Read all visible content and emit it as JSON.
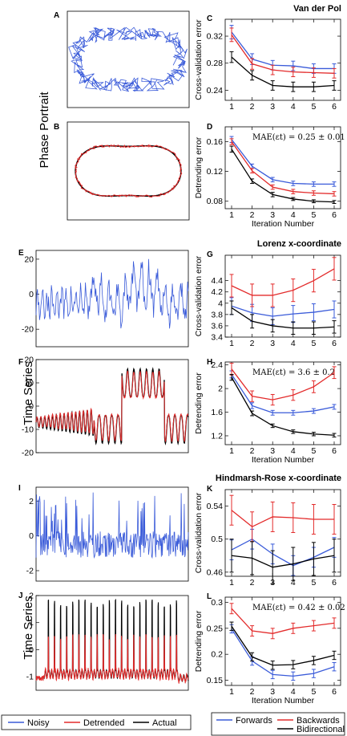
{
  "figure": {
    "row_labels": [
      "Phase Portrait",
      "Time Series",
      "Time Series"
    ],
    "section_titles": [
      "Van der Pol",
      "Lorenz x-coordinate",
      "Hindmarsh-Rose x-coordinate"
    ],
    "left_legend": [
      {
        "label": "Noisy",
        "color": "#3a5bd9"
      },
      {
        "label": "Detrended",
        "color": "#e32b2b"
      },
      {
        "label": "Actual",
        "color": "#000000"
      }
    ],
    "right_legend": [
      {
        "label": "Forwards",
        "color": "#3a5bd9"
      },
      {
        "label": "Backwards",
        "color": "#e32b2b"
      },
      {
        "label": "Bidirectional",
        "color": "#000000"
      }
    ],
    "colors": {
      "forwards": "#3a5bd9",
      "backwards": "#e32b2b",
      "bidirectional": "#000000"
    }
  },
  "chart_data": [
    {
      "panel": "A",
      "type": "line",
      "subtype": "phase-portrait-noisy",
      "series": [
        {
          "role": "noisy",
          "color": "#3a5bd9"
        }
      ]
    },
    {
      "panel": "B",
      "type": "line",
      "subtype": "phase-portrait-detrended",
      "series": [
        {
          "role": "actual",
          "color": "#000000"
        },
        {
          "role": "detrended",
          "color": "#e32b2b"
        }
      ]
    },
    {
      "panel": "C",
      "type": "line",
      "ylabel": "Cross-validation error",
      "x": [
        1,
        2,
        3,
        4,
        5,
        6
      ],
      "xlim": [
        1,
        6
      ],
      "ylim": [
        0.225,
        0.345
      ],
      "yticks": [
        "0.24",
        "0.28",
        "0.32"
      ],
      "ytick_values": [
        0.24,
        0.28,
        0.32
      ],
      "xticks": [
        "1",
        "2",
        "3",
        "4",
        "5",
        "6"
      ],
      "series": [
        {
          "name": "Forwards",
          "values": [
            0.326,
            0.286,
            0.277,
            0.276,
            0.272,
            0.272
          ],
          "err": [
            0.01,
            0.008,
            0.007,
            0.007,
            0.007,
            0.007
          ]
        },
        {
          "name": "Backwards",
          "values": [
            0.322,
            0.279,
            0.27,
            0.267,
            0.266,
            0.265
          ],
          "err": [
            0.01,
            0.008,
            0.007,
            0.007,
            0.007,
            0.007
          ]
        },
        {
          "name": "Bidirectional",
          "values": [
            0.289,
            0.262,
            0.247,
            0.245,
            0.245,
            0.247
          ],
          "err": [
            0.008,
            0.007,
            0.007,
            0.007,
            0.007,
            0.007
          ]
        }
      ]
    },
    {
      "panel": "D",
      "type": "line",
      "ylabel": "Detrending error",
      "xlabel": "Iteration Number",
      "annotation": "MAE(εt) = 0.25 ± 0.01",
      "x": [
        1,
        2,
        3,
        4,
        5,
        6
      ],
      "xlim": [
        1,
        6
      ],
      "ylim": [
        0.07,
        0.18
      ],
      "yticks": [
        "0.08",
        "0.12",
        "0.16"
      ],
      "ytick_values": [
        0.08,
        0.12,
        0.16
      ],
      "xticks": [
        "1",
        "2",
        "3",
        "4",
        "5",
        "6"
      ],
      "series": [
        {
          "name": "Forwards",
          "values": [
            0.163,
            0.127,
            0.109,
            0.104,
            0.103,
            0.103
          ],
          "err": [
            0.004,
            0.003,
            0.003,
            0.003,
            0.003,
            0.003
          ]
        },
        {
          "name": "Backwards",
          "values": [
            0.16,
            0.121,
            0.099,
            0.093,
            0.091,
            0.09
          ],
          "err": [
            0.004,
            0.003,
            0.003,
            0.003,
            0.003,
            0.003
          ]
        },
        {
          "name": "Bidirectional",
          "values": [
            0.15,
            0.107,
            0.089,
            0.083,
            0.08,
            0.079
          ],
          "err": [
            0.004,
            0.003,
            0.003,
            0.002,
            0.002,
            0.002
          ]
        }
      ]
    },
    {
      "panel": "E",
      "type": "line",
      "subtype": "time-series-noisy",
      "ylim": [
        -30,
        25
      ],
      "yticks": [
        "-20",
        "0",
        "20"
      ],
      "ytick_values": [
        -20,
        0,
        20
      ],
      "series": [
        {
          "role": "noisy",
          "color": "#3a5bd9"
        }
      ]
    },
    {
      "panel": "F",
      "type": "line",
      "subtype": "time-series-detrended",
      "ylim": [
        -20,
        20
      ],
      "yticks": [
        "-20",
        "-10",
        "0",
        "10",
        "20"
      ],
      "ytick_values": [
        -20,
        -10,
        0,
        10,
        20
      ],
      "series": [
        {
          "role": "actual",
          "color": "#000000"
        },
        {
          "role": "detrended",
          "color": "#e32b2b"
        }
      ]
    },
    {
      "panel": "G",
      "type": "line",
      "ylabel": "Cross-validation error",
      "x": [
        1,
        2,
        3,
        4,
        5,
        6
      ],
      "xlim": [
        1,
        6
      ],
      "ylim": [
        3.4,
        4.85
      ],
      "yticks": [
        "3.4",
        "3.6",
        "3.8",
        "4",
        "4.2",
        "4.4"
      ],
      "ytick_values": [
        3.4,
        3.6,
        3.8,
        4.0,
        4.2,
        4.4
      ],
      "xticks": [
        "1",
        "2",
        "3",
        "4",
        "5",
        "6"
      ],
      "series": [
        {
          "name": "Forwards",
          "values": [
            3.95,
            3.83,
            3.77,
            3.81,
            3.84,
            3.89
          ],
          "err": [
            0.15,
            0.15,
            0.15,
            0.15,
            0.15,
            0.15
          ]
        },
        {
          "name": "Backwards",
          "values": [
            4.31,
            4.14,
            4.14,
            4.23,
            4.4,
            4.61
          ],
          "err": [
            0.2,
            0.2,
            0.2,
            0.2,
            0.2,
            0.2
          ]
        },
        {
          "name": "Bidirectional",
          "values": [
            3.92,
            3.68,
            3.6,
            3.56,
            3.56,
            3.58
          ],
          "err": [
            0.12,
            0.12,
            0.11,
            0.11,
            0.11,
            0.11
          ]
        }
      ]
    },
    {
      "panel": "H",
      "type": "line",
      "ylabel": "Detrending error",
      "xlabel": "Iteration Number",
      "annotation": "MAE(εt) = 3.6 ± 0.2",
      "x": [
        1,
        2,
        3,
        4,
        5,
        6
      ],
      "xlim": [
        1,
        6
      ],
      "ylim": [
        1.05,
        2.45
      ],
      "yticks": [
        "1.2",
        "1.6",
        "2",
        "2.4"
      ],
      "ytick_values": [
        1.2,
        1.6,
        2.0,
        2.4
      ],
      "xticks": [
        "1",
        "2",
        "3",
        "4",
        "5",
        "6"
      ],
      "series": [
        {
          "name": "Forwards",
          "values": [
            2.24,
            1.71,
            1.59,
            1.59,
            1.62,
            1.69
          ],
          "err": [
            0.06,
            0.05,
            0.04,
            0.04,
            0.04,
            0.04
          ]
        },
        {
          "name": "Backwards",
          "values": [
            2.33,
            1.87,
            1.81,
            1.89,
            2.03,
            2.27
          ],
          "err": [
            0.1,
            0.09,
            0.09,
            0.09,
            0.1,
            0.1
          ]
        },
        {
          "name": "Bidirectional",
          "values": [
            2.19,
            1.58,
            1.37,
            1.27,
            1.23,
            1.21
          ],
          "err": [
            0.05,
            0.04,
            0.03,
            0.03,
            0.03,
            0.03
          ]
        }
      ]
    },
    {
      "panel": "I",
      "type": "line",
      "subtype": "time-series-noisy",
      "ylim": [
        -2.6,
        2.8
      ],
      "yticks": [
        "-2",
        "0",
        "2"
      ],
      "ytick_values": [
        -2,
        0,
        2
      ],
      "series": [
        {
          "role": "noisy",
          "color": "#3a5bd9"
        }
      ]
    },
    {
      "panel": "J",
      "type": "line",
      "subtype": "time-series-detrended",
      "ylim": [
        -1.5,
        2.0
      ],
      "yticks": [
        "-1",
        "0",
        "1",
        "2"
      ],
      "ytick_values": [
        -1,
        0,
        1,
        2
      ],
      "series": [
        {
          "role": "actual",
          "color": "#000000"
        },
        {
          "role": "detrended",
          "color": "#e32b2b"
        }
      ]
    },
    {
      "panel": "K",
      "type": "line",
      "ylabel": "Cross-validation error",
      "x": [
        1,
        2,
        3,
        4,
        5,
        6
      ],
      "xlim": [
        1,
        6
      ],
      "ylim": [
        0.455,
        0.56
      ],
      "yticks": [
        "0.46",
        "0.5",
        "0.54"
      ],
      "ytick_values": [
        0.46,
        0.5,
        0.54
      ],
      "xticks": [
        "1",
        "2",
        "3",
        "4",
        "5",
        "6"
      ],
      "series": [
        {
          "name": "Forwards",
          "values": [
            0.487,
            0.5,
            0.482,
            0.468,
            0.478,
            0.49
          ],
          "err": [
            0.012,
            0.012,
            0.012,
            0.012,
            0.012,
            0.012
          ]
        },
        {
          "name": "Backwards",
          "values": [
            0.535,
            0.515,
            0.527,
            0.526,
            0.524,
            0.524
          ],
          "err": [
            0.018,
            0.018,
            0.018,
            0.018,
            0.018,
            0.018
          ]
        },
        {
          "name": "Bidirectional",
          "values": [
            0.48,
            0.477,
            0.466,
            0.47,
            0.476,
            0.48
          ],
          "err": [
            0.02,
            0.02,
            0.02,
            0.02,
            0.02,
            0.02
          ]
        }
      ]
    },
    {
      "panel": "L",
      "type": "line",
      "ylabel": "Detrending error",
      "xlabel": "Iteration Number",
      "annotation": "MAE(εt) = 0.42 ± 0.02",
      "x": [
        1,
        2,
        3,
        4,
        5,
        6
      ],
      "xlim": [
        1,
        6
      ],
      "ylim": [
        0.14,
        0.31
      ],
      "yticks": [
        "0.15",
        "0.2",
        "0.25",
        "0.3"
      ],
      "ytick_values": [
        0.15,
        0.2,
        0.25,
        0.3
      ],
      "xticks": [
        "1",
        "2",
        "3",
        "4",
        "5",
        "6"
      ],
      "series": [
        {
          "name": "Forwards",
          "values": [
            0.249,
            0.187,
            0.161,
            0.158,
            0.163,
            0.176
          ],
          "err": [
            0.008,
            0.008,
            0.008,
            0.008,
            0.008,
            0.008
          ]
        },
        {
          "name": "Backwards",
          "values": [
            0.288,
            0.245,
            0.24,
            0.25,
            0.255,
            0.26
          ],
          "err": [
            0.01,
            0.01,
            0.01,
            0.01,
            0.01,
            0.01
          ]
        },
        {
          "name": "Bidirectional",
          "values": [
            0.254,
            0.195,
            0.179,
            0.18,
            0.188,
            0.198
          ],
          "err": [
            0.008,
            0.008,
            0.008,
            0.008,
            0.008,
            0.008
          ]
        }
      ]
    }
  ]
}
